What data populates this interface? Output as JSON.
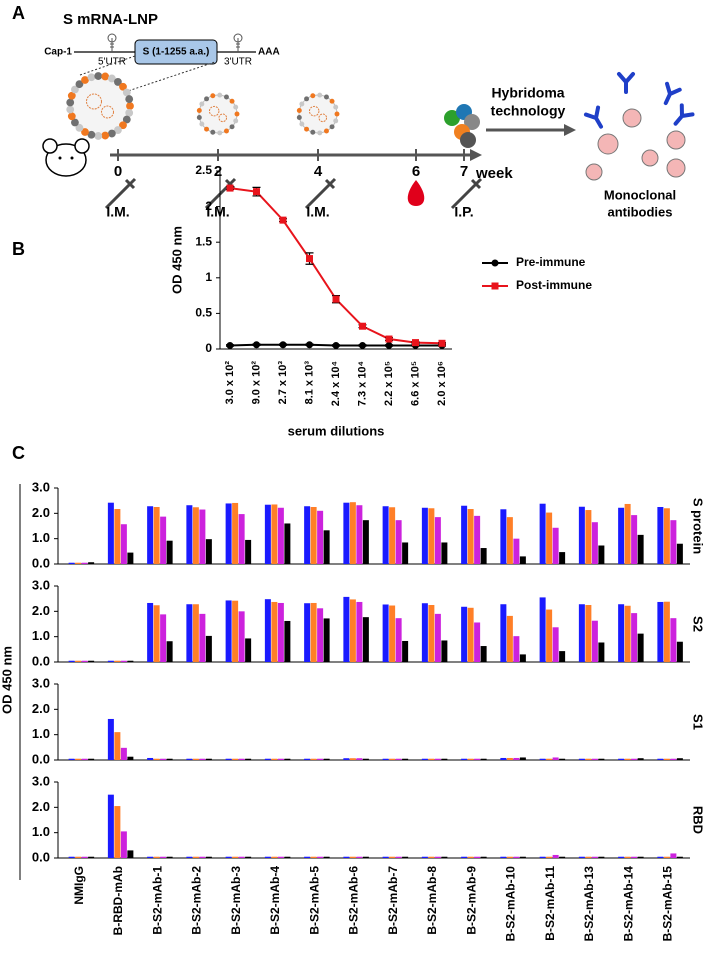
{
  "panel_a": {
    "panel_label": "A",
    "title": "S mRNA-LNP",
    "cap": "Cap-1",
    "utr5": "5'UTR",
    "gene": "S (1-1255 a.a.)",
    "utr3": "3'UTR",
    "tail": "AAA",
    "timeline": [
      {
        "day": 0,
        "route": "I.M."
      },
      {
        "day": 2,
        "route": "I.M."
      },
      {
        "day": 4,
        "route": "I.M."
      },
      {
        "day": 6
      },
      {
        "day": 7,
        "route": "I.P."
      }
    ],
    "unit": "week",
    "method": [
      "Hybridoma",
      "technology"
    ],
    "result": [
      "Monoclonal",
      "antibodies"
    ]
  },
  "chart_data": [
    {
      "type": "line",
      "panel_label": "B",
      "ylabel": "OD 450 nm",
      "xlabel": "serum dilutions",
      "categories": [
        "3.0 x 10²",
        "9.0 x 10²",
        "2.7 x 10³",
        "8.1 x 10³",
        "2.4 x 10⁴",
        "7.3 x 10⁴",
        "2.2 x 10⁵",
        "6.6 x 10⁵",
        "2.0 x 10⁶"
      ],
      "ylim": [
        0,
        2.5
      ],
      "yticks": [
        0,
        0.5,
        1,
        1.5,
        2,
        2.5
      ],
      "series": [
        {
          "name": "Pre-immune",
          "color": "#000000",
          "marker": "circle",
          "values": [
            0.05,
            0.06,
            0.06,
            0.06,
            0.05,
            0.05,
            0.05,
            0.05,
            0.05
          ],
          "errors": [
            0.01,
            0.01,
            0.01,
            0.01,
            0.01,
            0.01,
            0.01,
            0.01,
            0.01
          ]
        },
        {
          "name": "Post-immune",
          "color": "#e8141c",
          "marker": "square",
          "values": [
            2.26,
            2.21,
            1.81,
            1.27,
            0.7,
            0.32,
            0.14,
            0.09,
            0.08
          ],
          "errors": [
            0.02,
            0.06,
            0.02,
            0.08,
            0.05,
            0.02,
            0.02,
            0.01,
            0.01
          ]
        }
      ]
    },
    {
      "type": "bar",
      "panel_label": "C",
      "ylabel": "OD 450 nm",
      "categories": [
        "NMIgG",
        "B-RBD-mAb",
        "B-S2-mAb-1",
        "B-S2-mAb-2",
        "B-S2-mAb-3",
        "B-S2-mAb-4",
        "B-S2-mAb-5",
        "B-S2-mAb-6",
        "B-S2-mAb-7",
        "B-S2-mAb-8",
        "B-S2-mAb-9",
        "B-S2-mAb-10",
        "B-S2-mAb-11",
        "B-S2-mAb-13",
        "B-S2-mAb-14",
        "B-S2-mAb-15"
      ],
      "ylim": [
        0,
        3
      ],
      "yticks": [
        {
          "value": 0,
          "label": "0.0"
        },
        {
          "value": 1,
          "label": "1.0"
        },
        {
          "value": 2,
          "label": "2.0"
        },
        {
          "value": 3,
          "label": "3.0"
        }
      ],
      "panels": [
        {
          "label": "S protein",
          "series": [
            {
              "color": "#1a1aff",
              "values": [
                0.05,
                2.42,
                2.28,
                2.32,
                2.39,
                2.34,
                2.28,
                2.42,
                2.28,
                2.22,
                2.3,
                2.16,
                2.38,
                2.26,
                2.22,
                2.25
              ]
            },
            {
              "color": "#ff7f27",
              "values": [
                0.05,
                2.17,
                2.25,
                2.24,
                2.41,
                2.35,
                2.25,
                2.44,
                2.24,
                2.2,
                2.17,
                1.85,
                2.03,
                2.13,
                2.37,
                2.2
              ]
            },
            {
              "color": "#cc22dd",
              "values": [
                0.05,
                1.57,
                1.87,
                2.15,
                1.97,
                2.22,
                2.1,
                2.32,
                1.73,
                1.85,
                1.9,
                1.0,
                1.43,
                1.65,
                1.93,
                1.73
              ]
            },
            {
              "color": "#000000",
              "values": [
                0.07,
                0.45,
                0.92,
                0.98,
                0.95,
                1.6,
                1.33,
                1.73,
                0.85,
                0.85,
                0.63,
                0.3,
                0.47,
                0.73,
                1.15,
                0.8
              ]
            }
          ]
        },
        {
          "label": "S2",
          "series": [
            {
              "color": "#1a1aff",
              "values": [
                0.05,
                0.05,
                2.33,
                2.28,
                2.43,
                2.48,
                2.32,
                2.57,
                2.27,
                2.32,
                2.18,
                2.28,
                2.55,
                2.28,
                2.28,
                2.37
              ]
            },
            {
              "color": "#ff7f27",
              "values": [
                0.05,
                0.05,
                2.24,
                2.28,
                2.42,
                2.37,
                2.33,
                2.47,
                2.23,
                2.25,
                2.14,
                1.82,
                2.07,
                2.25,
                2.22,
                2.38
              ]
            },
            {
              "color": "#cc22dd",
              "values": [
                0.05,
                0.05,
                1.88,
                1.9,
                2.0,
                2.33,
                2.12,
                2.37,
                1.73,
                1.9,
                1.56,
                1.02,
                1.37,
                1.63,
                1.93,
                1.73
              ]
            },
            {
              "color": "#000000",
              "values": [
                0.05,
                0.05,
                0.82,
                1.03,
                0.93,
                1.62,
                1.72,
                1.77,
                0.83,
                0.85,
                0.63,
                0.3,
                0.43,
                0.77,
                1.12,
                0.8
              ]
            }
          ]
        },
        {
          "label": "S1",
          "series": [
            {
              "color": "#1a1aff",
              "values": [
                0.05,
                1.62,
                0.08,
                0.05,
                0.05,
                0.05,
                0.05,
                0.07,
                0.05,
                0.05,
                0.05,
                0.08,
                0.05,
                0.05,
                0.05,
                0.05
              ]
            },
            {
              "color": "#ff7f27",
              "values": [
                0.05,
                1.1,
                0.05,
                0.05,
                0.05,
                0.05,
                0.05,
                0.07,
                0.05,
                0.05,
                0.05,
                0.08,
                0.05,
                0.05,
                0.05,
                0.05
              ]
            },
            {
              "color": "#cc22dd",
              "values": [
                0.05,
                0.48,
                0.05,
                0.05,
                0.05,
                0.05,
                0.05,
                0.07,
                0.05,
                0.05,
                0.05,
                0.08,
                0.1,
                0.05,
                0.05,
                0.05
              ]
            },
            {
              "color": "#000000",
              "values": [
                0.05,
                0.13,
                0.05,
                0.05,
                0.05,
                0.05,
                0.05,
                0.05,
                0.05,
                0.05,
                0.05,
                0.1,
                0.05,
                0.05,
                0.07,
                0.07
              ]
            }
          ]
        },
        {
          "label": "RBD",
          "series": [
            {
              "color": "#1a1aff",
              "values": [
                0.05,
                2.5,
                0.05,
                0.05,
                0.05,
                0.05,
                0.05,
                0.05,
                0.05,
                0.05,
                0.05,
                0.05,
                0.05,
                0.05,
                0.05,
                0.05
              ]
            },
            {
              "color": "#ff7f27",
              "values": [
                0.05,
                2.05,
                0.05,
                0.05,
                0.05,
                0.05,
                0.05,
                0.05,
                0.05,
                0.05,
                0.05,
                0.05,
                0.05,
                0.05,
                0.05,
                0.05
              ]
            },
            {
              "color": "#cc22dd",
              "values": [
                0.05,
                1.05,
                0.05,
                0.05,
                0.05,
                0.05,
                0.05,
                0.05,
                0.05,
                0.05,
                0.05,
                0.05,
                0.12,
                0.05,
                0.05,
                0.18
              ]
            },
            {
              "color": "#000000",
              "values": [
                0.05,
                0.3,
                0.05,
                0.05,
                0.05,
                0.05,
                0.05,
                0.05,
                0.05,
                0.05,
                0.05,
                0.05,
                0.05,
                0.05,
                0.05,
                0.05
              ]
            }
          ]
        }
      ]
    }
  ]
}
